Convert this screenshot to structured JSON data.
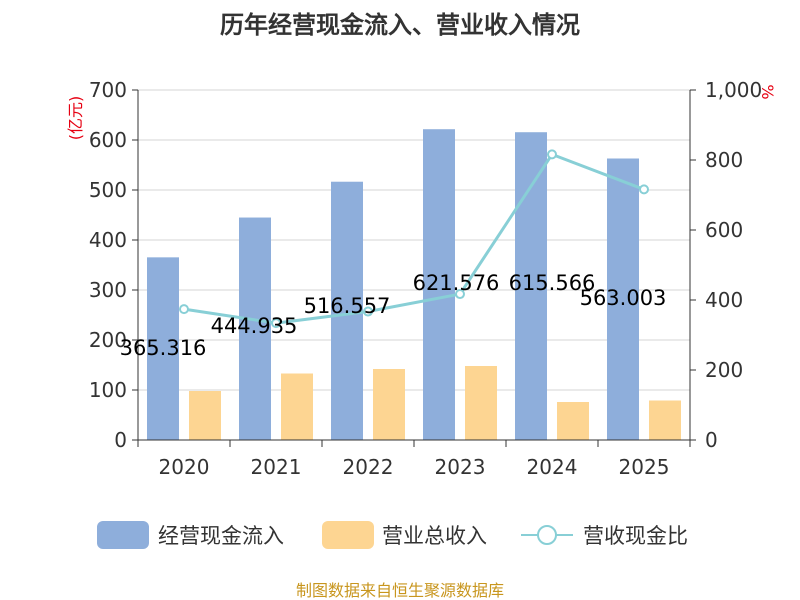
{
  "chart_data": {
    "type": "bar",
    "title": "历年经营现金流入、营业收入情况",
    "categories": [
      "2020",
      "2021",
      "2022",
      "2023",
      "2024",
      "2025"
    ],
    "series": [
      {
        "name": "经营现金流入",
        "type": "bar",
        "axis": "left",
        "color": "#8eaedb",
        "values": [
          365.316,
          444.935,
          516.557,
          621.576,
          615.566,
          563.003
        ],
        "labels": [
          "365.316",
          "444.935",
          "516.557",
          "621.576",
          "615.566",
          "563.003"
        ]
      },
      {
        "name": "营业总收入",
        "type": "bar",
        "axis": "left",
        "color": "#fdd592",
        "values": [
          98,
          133,
          142,
          148,
          76,
          79
        ]
      },
      {
        "name": "营收现金比",
        "type": "line",
        "axis": "right",
        "color": "#88cfd6",
        "values": [
          374,
          334,
          367,
          417,
          816,
          716
        ]
      }
    ],
    "y_left": {
      "unit": "(亿元)",
      "min": 0,
      "max": 700,
      "step": 100,
      "ticks": [
        "0",
        "100",
        "200",
        "300",
        "400",
        "500",
        "600",
        "700"
      ]
    },
    "y_right": {
      "unit": "%",
      "min": 0,
      "max": 1000,
      "step": 200,
      "ticks": [
        "0",
        "200",
        "400",
        "600",
        "800",
        "1,000"
      ]
    },
    "grid": true,
    "legend_position": "bottom"
  },
  "footer": {
    "source": "制图数据来自恒生聚源数据库"
  }
}
